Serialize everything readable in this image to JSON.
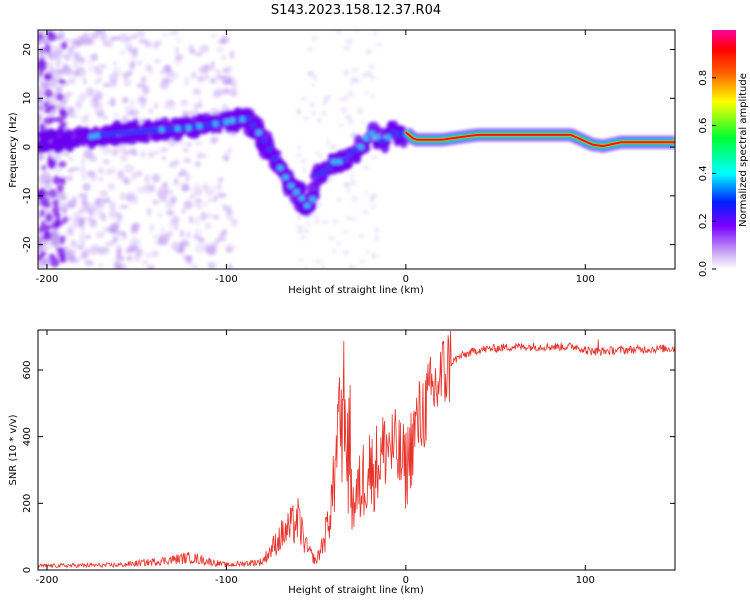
{
  "figure": {
    "title": "S143.2023.158.12.37.R04"
  },
  "chart_data": [
    {
      "type": "heatmap",
      "xlabel": "Height of straight line (km)",
      "ylabel": "Frequency (Hz)",
      "xlim": [
        -205,
        150
      ],
      "ylim": [
        -25,
        24
      ],
      "x_ticks": [
        -200,
        -100,
        0,
        100
      ],
      "y_ticks": [
        -20,
        -10,
        0,
        10,
        20
      ],
      "colorbar": {
        "label": "Normalized spectral amplitude",
        "range": [
          0,
          1
        ],
        "ticks": [
          0.0,
          0.2,
          0.4,
          0.6,
          0.8
        ]
      },
      "ridge": {
        "x": [
          -200,
          -185,
          -170,
          -155,
          -140,
          -125,
          -110,
          -95,
          -88,
          -80,
          -72,
          -65,
          -58,
          -53,
          -50,
          -45,
          -40,
          -35,
          -30,
          -25,
          -20,
          -16,
          -12,
          -8,
          -5,
          -2,
          0,
          5,
          20,
          40,
          60,
          80,
          92,
          98,
          104,
          110,
          120,
          150
        ],
        "y": [
          1.5,
          1.5,
          2.5,
          3,
          3.5,
          3.8,
          4.5,
          5.5,
          5.8,
          2,
          -3,
          -7.5,
          -10.5,
          -13,
          -6,
          -5,
          -3,
          -3,
          -1,
          0,
          3,
          2,
          1,
          3,
          3,
          2,
          3,
          1.5,
          1.5,
          2.5,
          2.5,
          2.5,
          2.5,
          1.5,
          0.5,
          0.2,
          1,
          1
        ]
      }
    },
    {
      "type": "line",
      "xlabel": "Height of straight line (km)",
      "ylabel": "SNR (10 * v/v)",
      "xlim": [
        -205,
        150
      ],
      "ylim": [
        0,
        720
      ],
      "x_ticks": [
        -200,
        -100,
        0,
        100
      ],
      "y_ticks": [
        0,
        200,
        400,
        600
      ],
      "series": [
        {
          "color": "#e8322a",
          "envelope_x": [
            -205,
            -160,
            -140,
            -120,
            -100,
            -80,
            -70,
            -65,
            -60,
            -55,
            -50,
            -45,
            -40,
            -35,
            -30,
            -25,
            -20,
            -15,
            -10,
            -5,
            0,
            5,
            10,
            15,
            20,
            25,
            30,
            40,
            60,
            80,
            95,
            100,
            105,
            120,
            150
          ],
          "envelope_y": [
            10,
            12,
            20,
            30,
            12,
            20,
            80,
            100,
            120,
            50,
            20,
            80,
            200,
            400,
            150,
            200,
            280,
            330,
            380,
            350,
            300,
            420,
            480,
            530,
            580,
            620,
            640,
            660,
            670,
            670,
            670,
            660,
            655,
            660,
            665
          ]
        }
      ]
    }
  ]
}
